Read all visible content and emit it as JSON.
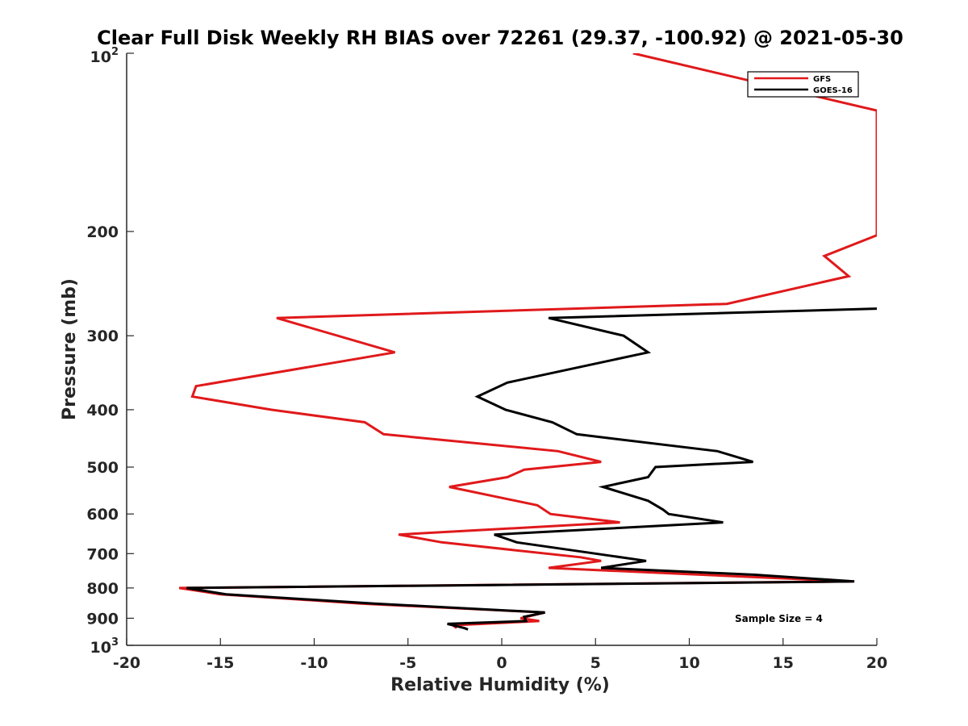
{
  "chart_data": {
    "type": "line",
    "title": "Clear Full Disk Weekly RH BIAS over 72261 (29.37, -100.92) @ 2021-05-30",
    "xlabel": "Relative Humidity (%)",
    "ylabel": "Pressure (mb)",
    "xlim": [
      -20,
      20
    ],
    "ylim": [
      100,
      1000
    ],
    "y_scale": "log",
    "y_reversed": true,
    "grid": false,
    "legend_position": "top-right",
    "x_ticks": [
      -20,
      -15,
      -10,
      -5,
      0,
      5,
      10,
      15,
      20
    ],
    "x_tick_labels": [
      "-20",
      "-15",
      "-10",
      "-5",
      "0",
      "5",
      "10",
      "15",
      "20"
    ],
    "y_ticks": [
      200,
      300,
      400,
      500,
      600,
      700,
      800,
      900
    ],
    "y_tick_labels": [
      "200",
      "300",
      "400",
      "500",
      "600",
      "700",
      "800",
      "900"
    ],
    "y_tick_top": {
      "base": "10",
      "exp": "2"
    },
    "y_tick_bottom": {
      "base": "10",
      "exp": "3"
    },
    "annotation": "Sample Size = 4",
    "series": [
      {
        "name": "GFS",
        "color": "#e0191b",
        "points": [
          [
            7.0,
            100
          ],
          [
            20.0,
            125
          ],
          [
            20.0,
            203
          ],
          [
            17.2,
            220
          ],
          [
            18.5,
            238
          ],
          [
            12.0,
            265
          ],
          [
            -12.0,
            280
          ],
          [
            -5.7,
            320
          ],
          [
            -16.3,
            365
          ],
          [
            -16.5,
            380
          ],
          [
            -12.3,
            400
          ],
          [
            -7.3,
            420
          ],
          [
            -6.3,
            440
          ],
          [
            3.0,
            470
          ],
          [
            5.3,
            490
          ],
          [
            1.2,
            505
          ],
          [
            0.3,
            520
          ],
          [
            -2.8,
            540
          ],
          [
            1.9,
            580
          ],
          [
            2.6,
            600
          ],
          [
            6.3,
            620
          ],
          [
            -5.5,
            650
          ],
          [
            -3.2,
            670
          ],
          [
            4.2,
            710
          ],
          [
            5.3,
            720
          ],
          [
            2.5,
            740
          ],
          [
            18.7,
            780
          ],
          [
            -17.2,
            800
          ],
          [
            -15.0,
            820
          ],
          [
            -7.5,
            850
          ],
          [
            2.3,
            880
          ],
          [
            1.0,
            900
          ],
          [
            2.0,
            910
          ],
          [
            -2.6,
            925
          ],
          [
            -2.4,
            935
          ]
        ]
      },
      {
        "name": "GOES-16",
        "color": "#000000",
        "points": [
          [
            20.0,
            270
          ],
          [
            2.5,
            280
          ],
          [
            6.5,
            300
          ],
          [
            7.8,
            320
          ],
          [
            0.3,
            360
          ],
          [
            -1.3,
            380
          ],
          [
            0.2,
            400
          ],
          [
            2.7,
            420
          ],
          [
            4.0,
            440
          ],
          [
            11.5,
            470
          ],
          [
            13.4,
            490
          ],
          [
            8.2,
            500
          ],
          [
            7.8,
            520
          ],
          [
            5.4,
            540
          ],
          [
            7.8,
            570
          ],
          [
            8.6,
            590
          ],
          [
            8.9,
            600
          ],
          [
            11.8,
            620
          ],
          [
            -0.4,
            650
          ],
          [
            0.8,
            670
          ],
          [
            5.0,
            700
          ],
          [
            7.7,
            720
          ],
          [
            5.3,
            740
          ],
          [
            13.5,
            760
          ],
          [
            18.8,
            780
          ],
          [
            -16.8,
            800
          ],
          [
            -14.7,
            820
          ],
          [
            -6.8,
            850
          ],
          [
            2.3,
            880
          ],
          [
            1.2,
            895
          ],
          [
            1.3,
            910
          ],
          [
            -2.9,
            920
          ],
          [
            -2.0,
            935
          ],
          [
            -1.8,
            940
          ]
        ]
      }
    ]
  }
}
